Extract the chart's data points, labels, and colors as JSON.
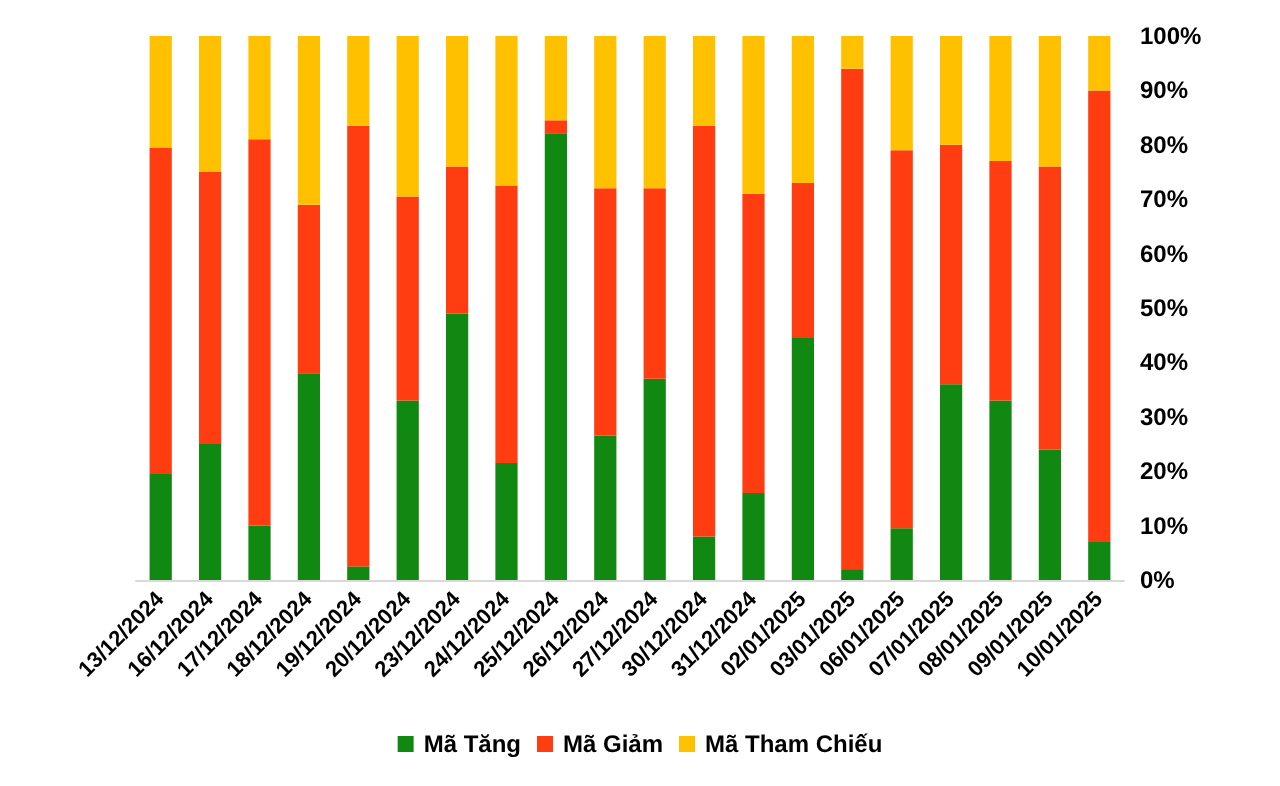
{
  "chart_data": {
    "type": "bar",
    "stacked": true,
    "categories": [
      "13/12/2024",
      "16/12/2024",
      "17/12/2024",
      "18/12/2024",
      "19/12/2024",
      "20/12/2024",
      "23/12/2024",
      "24/12/2024",
      "25/12/2024",
      "26/12/2024",
      "27/12/2024",
      "30/12/2024",
      "31/12/2024",
      "02/01/2025",
      "03/01/2025",
      "06/01/2025",
      "07/01/2025",
      "08/01/2025",
      "09/01/2025",
      "10/01/2025"
    ],
    "series": [
      {
        "name": "Mã Tăng",
        "color": "#118811",
        "values": [
          19.5,
          25,
          10,
          38,
          2.5,
          33,
          49,
          21.5,
          82,
          26.5,
          37,
          8,
          16,
          44.5,
          2,
          9.5,
          36,
          33,
          24,
          7
        ]
      },
      {
        "name": "Mã Giảm",
        "color": "#ff3d11",
        "values": [
          60,
          50,
          71,
          31,
          81,
          37.5,
          27,
          51,
          2.5,
          45.5,
          35,
          75.5,
          55,
          28.5,
          92,
          69.5,
          44,
          44,
          52,
          83
        ]
      },
      {
        "name": "Mã Tham Chiếu",
        "color": "#ffc000",
        "values": [
          20.5,
          25,
          19,
          31,
          16.5,
          29.5,
          24,
          27.5,
          15.5,
          28,
          28,
          16.5,
          29,
          27,
          6,
          21,
          20,
          23,
          24,
          10
        ]
      }
    ],
    "ylim": [
      0,
      100
    ],
    "yticks": [
      {
        "value": 0,
        "label": "0%"
      },
      {
        "value": 10,
        "label": "10%"
      },
      {
        "value": 20,
        "label": "20%"
      },
      {
        "value": 30,
        "label": "30%"
      },
      {
        "value": 40,
        "label": "40%"
      },
      {
        "value": 50,
        "label": "50%"
      },
      {
        "value": 60,
        "label": "60%"
      },
      {
        "value": 70,
        "label": "70%"
      },
      {
        "value": 80,
        "label": "80%"
      },
      {
        "value": 90,
        "label": "90%"
      },
      {
        "value": 100,
        "label": "100%"
      }
    ],
    "grid": false,
    "legend": "bottom"
  }
}
